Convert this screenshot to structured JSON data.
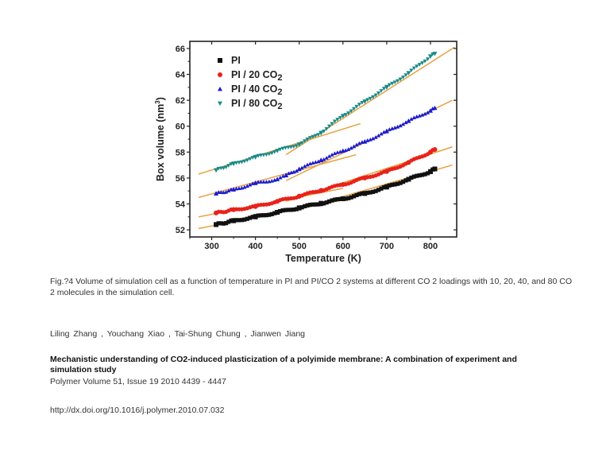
{
  "figure_caption": "Fig.?4   Volume of simulation cell as a function of temperature in PI and PI/CO 2  systems at different CO 2  loadings with 10, 20, 40, and 80 CO 2  molecules in the simulation cell.",
  "authors": "Liling  Zhang , Youchang  Xiao , Tai-Shung  Chung , Jianwen  Jiang",
  "paper_title": "Mechanistic understanding of CO2-induced plasticization of a polyimide membrane: A combination of experiment and simulation study",
  "journal": "Polymer Volume 51, Issue 19 2010 4439 - 4447",
  "doi": "http://dx.doi.org/10.1016/j.polymer.2010.07.032",
  "chart_data": {
    "type": "scatter",
    "title": "",
    "xlabel": "Temperature (K)",
    "ylabel": "Box volume (nm",
    "ylabel_sup": "3",
    "ylabel_end": ")",
    "xlim": [
      250,
      860
    ],
    "ylim": [
      51.45,
      66.55
    ],
    "xticks": [
      300,
      400,
      500,
      600,
      700,
      800
    ],
    "yticks": [
      52,
      54,
      56,
      58,
      60,
      62,
      64,
      66
    ],
    "legend_position": "top-left",
    "fit_color": "#e8a040",
    "series": [
      {
        "name": "PI",
        "legend_label": "PI",
        "legend_sub": "",
        "marker": "square",
        "color": "#111111",
        "x": [
          310,
          350,
          400,
          450,
          500,
          550,
          600,
          650,
          700,
          750,
          800,
          810
        ],
        "y": [
          52.4,
          52.7,
          53.0,
          53.35,
          53.7,
          54.05,
          54.4,
          54.8,
          55.3,
          55.9,
          56.5,
          56.7
        ],
        "fits": [
          [
            [
              270,
              52.1
            ],
            [
              600,
              54.3
            ]
          ],
          [
            [
              490,
              53.5
            ],
            [
              850,
              57.0
            ]
          ]
        ]
      },
      {
        "name": "PI / 20 CO2",
        "legend_label": "PI / 20 CO",
        "legend_sub": "2",
        "marker": "circle",
        "color": "#e8231a",
        "x": [
          310,
          350,
          400,
          450,
          500,
          550,
          600,
          650,
          700,
          750,
          800,
          810
        ],
        "y": [
          53.3,
          53.55,
          53.8,
          54.2,
          54.6,
          55.05,
          55.5,
          56.0,
          56.5,
          57.2,
          58.0,
          58.2
        ],
        "fits": [
          [
            [
              270,
              53.0
            ],
            [
              600,
              55.2
            ]
          ],
          [
            [
              470,
              54.2
            ],
            [
              850,
              58.4
            ]
          ]
        ]
      },
      {
        "name": "PI / 40 CO2",
        "legend_label": "PI / 40 CO",
        "legend_sub": "2",
        "marker": "triangle-up",
        "color": "#1a1ad0",
        "x": [
          310,
          350,
          400,
          450,
          470,
          500,
          550,
          600,
          650,
          700,
          750,
          800,
          810
        ],
        "y": [
          54.8,
          55.1,
          55.6,
          55.9,
          56.2,
          56.7,
          57.4,
          58.1,
          58.8,
          59.6,
          60.4,
          61.2,
          61.4
        ],
        "fits": [
          [
            [
              270,
              54.5
            ],
            [
              630,
              57.8
            ]
          ],
          [
            [
              470,
              55.8
            ],
            [
              850,
              62.0
            ]
          ]
        ]
      },
      {
        "name": "PI / 80 CO2",
        "legend_label": "PI / 80 CO",
        "legend_sub": "2",
        "marker": "triangle-down",
        "color": "#1a8a88",
        "x": [
          310,
          350,
          400,
          450,
          500,
          550,
          600,
          650,
          700,
          750,
          800,
          810
        ],
        "y": [
          56.6,
          57.1,
          57.6,
          58.1,
          58.6,
          59.5,
          60.8,
          61.9,
          63.0,
          64.1,
          65.4,
          65.6
        ],
        "fits": [
          [
            [
              270,
              56.3
            ],
            [
              640,
              60.2
            ]
          ],
          [
            [
              470,
              57.8
            ],
            [
              855,
              66.1
            ]
          ]
        ]
      }
    ]
  }
}
